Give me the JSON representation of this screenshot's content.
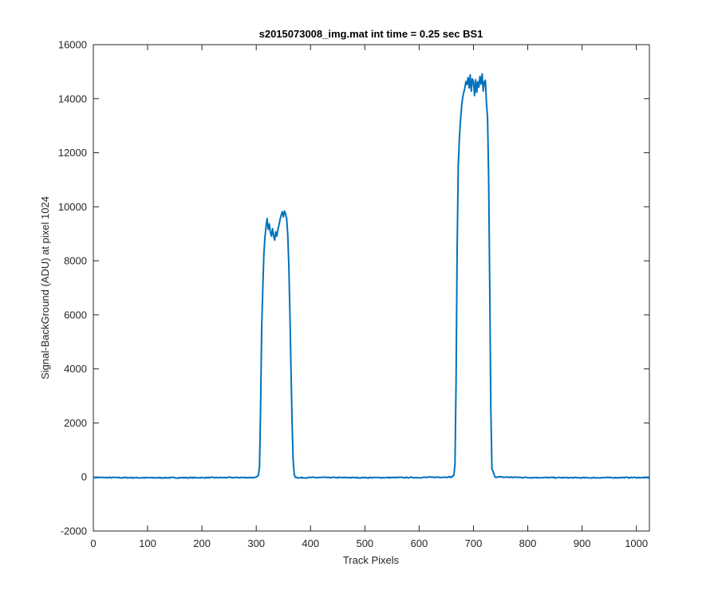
{
  "chart_data": {
    "type": "line",
    "title": "s2015073008_img.mat int time = 0.25 sec   BS1",
    "xlabel": "Track Pixels",
    "ylabel": "Signal-BackGround (ADU) at pixel 1024",
    "xlim": [
      0,
      1024
    ],
    "ylim": [
      -2000,
      16000
    ],
    "xticks": [
      0,
      100,
      200,
      300,
      400,
      500,
      600,
      700,
      800,
      900,
      1000
    ],
    "yticks": [
      -2000,
      0,
      2000,
      4000,
      6000,
      8000,
      10000,
      12000,
      14000,
      16000
    ],
    "grid": false,
    "series": [
      {
        "color": "#0072BD",
        "x": [
          0,
          100,
          200,
          300,
          304,
          306,
          308,
          310,
          312,
          314,
          316,
          318,
          320,
          322,
          324,
          326,
          328,
          330,
          332,
          334,
          336,
          338,
          340,
          342,
          344,
          346,
          348,
          350,
          352,
          354,
          356,
          358,
          360,
          362,
          364,
          366,
          368,
          370,
          372,
          374,
          378,
          400,
          500,
          600,
          660,
          664,
          666,
          668,
          670,
          672,
          674,
          676,
          678,
          680,
          682,
          684,
          686,
          688,
          690,
          692,
          694,
          696,
          698,
          700,
          702,
          704,
          706,
          708,
          710,
          712,
          714,
          716,
          718,
          720,
          722,
          724,
          726,
          728,
          730,
          732,
          734,
          740,
          800,
          900,
          1000,
          1024
        ],
        "y": [
          -20,
          -30,
          -25,
          -20,
          50,
          400,
          2500,
          5500,
          6900,
          8200,
          8900,
          9300,
          9600,
          9200,
          9400,
          9100,
          8900,
          9150,
          8950,
          8800,
          9100,
          8900,
          9200,
          9350,
          9500,
          9700,
          9800,
          9600,
          9850,
          9750,
          9600,
          9000,
          7800,
          6000,
          4000,
          2000,
          600,
          100,
          0,
          -10,
          -30,
          -20,
          -25,
          -20,
          0,
          60,
          500,
          3500,
          8500,
          11500,
          12500,
          13200,
          13700,
          14000,
          14200,
          14400,
          14600,
          14500,
          14800,
          14400,
          14900,
          14300,
          14700,
          14600,
          14100,
          14700,
          14200,
          14600,
          14400,
          14800,
          14500,
          14900,
          14300,
          14600,
          14700,
          13800,
          13300,
          11000,
          7000,
          2500,
          300,
          0,
          -20,
          -30,
          -20,
          -30
        ]
      }
    ]
  }
}
